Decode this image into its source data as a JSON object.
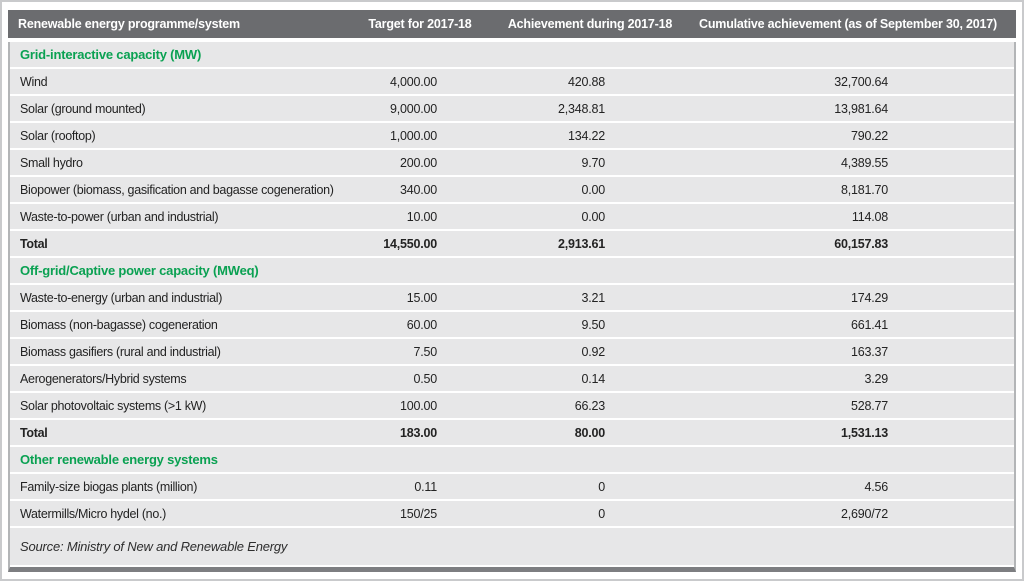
{
  "table": {
    "columns": [
      "Renewable energy programme/system",
      "Target for 2017-18",
      "Achievement during 2017-18",
      "Cumulative achievement (as of September 30, 2017)"
    ],
    "sections": [
      {
        "title": "Grid-interactive capacity (MW)",
        "rows": [
          {
            "label": "Wind",
            "target": "4,000.00",
            "achievement": "420.88",
            "cumulative": "32,700.64"
          },
          {
            "label": "Solar (ground mounted)",
            "target": "9,000.00",
            "achievement": "2,348.81",
            "cumulative": "13,981.64"
          },
          {
            "label": "Solar (rooftop)",
            "target": "1,000.00",
            "achievement": "134.22",
            "cumulative": "790.22"
          },
          {
            "label": "Small hydro",
            "target": "200.00",
            "achievement": "9.70",
            "cumulative": "4,389.55"
          },
          {
            "label": "Biopower (biomass, gasification and bagasse cogeneration)",
            "target": "340.00",
            "achievement": "0.00",
            "cumulative": "8,181.70"
          },
          {
            "label": "Waste-to-power (urban and industrial)",
            "target": "10.00",
            "achievement": "0.00",
            "cumulative": "114.08"
          },
          {
            "label": "Total",
            "target": "14,550.00",
            "achievement": "2,913.61",
            "cumulative": "60,157.83",
            "bold": true
          }
        ]
      },
      {
        "title": "Off-grid/Captive power capacity (MWeq)",
        "rows": [
          {
            "label": "Waste-to-energy (urban and industrial)",
            "target": "15.00",
            "achievement": "3.21",
            "cumulative": "174.29"
          },
          {
            "label": "Biomass (non-bagasse) cogeneration",
            "target": "60.00",
            "achievement": "9.50",
            "cumulative": "661.41"
          },
          {
            "label": "Biomass gasifiers (rural and industrial)",
            "target": "7.50",
            "achievement": "0.92",
            "cumulative": "163.37"
          },
          {
            "label": "Aerogenerators/Hybrid systems",
            "target": "0.50",
            "achievement": "0.14",
            "cumulative": "3.29"
          },
          {
            "label": "Solar photovoltaic systems (>1 kW)",
            "target": "100.00",
            "achievement": "66.23",
            "cumulative": "528.77"
          },
          {
            "label": "Total",
            "target": "183.00",
            "achievement": "80.00",
            "cumulative": "1,531.13",
            "bold": true
          }
        ]
      },
      {
        "title": "Other renewable energy systems",
        "rows": [
          {
            "label": "Family-size biogas plants (million)",
            "target": "0.11",
            "achievement": "0",
            "cumulative": "4.56"
          },
          {
            "label": "Watermills/Micro hydel (no.)",
            "target": "150/25",
            "achievement": "0",
            "cumulative": "2,690/72"
          }
        ]
      }
    ],
    "source": "Source: Ministry of New and Renewable Energy"
  },
  "colors": {
    "header_bg": "#6b6c6f",
    "row_bg": "#e7e7e8",
    "section_green": "#0aa152",
    "text": "#232323"
  }
}
